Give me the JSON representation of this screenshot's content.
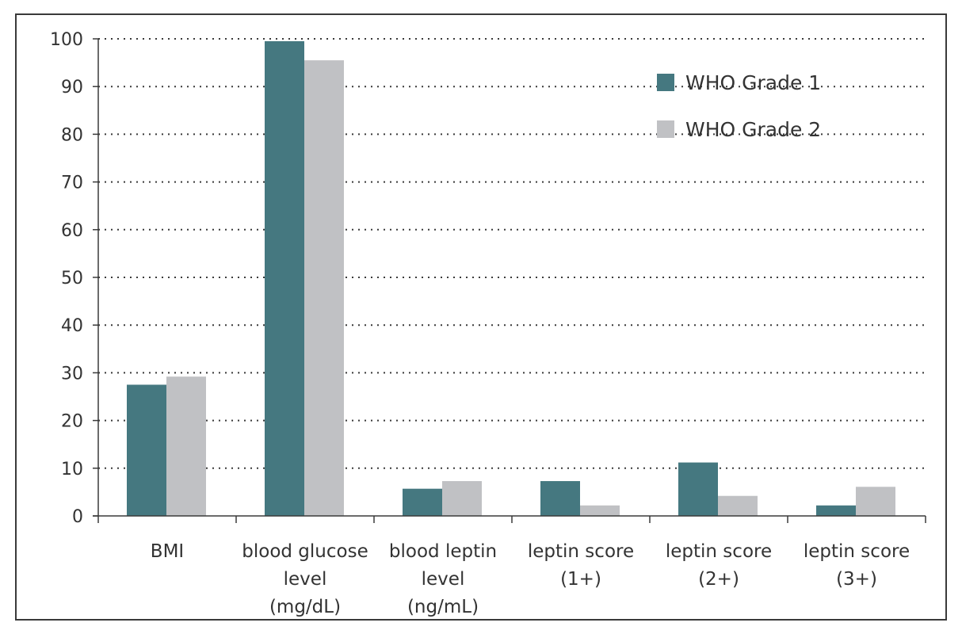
{
  "chart_data": {
    "type": "bar",
    "categories": [
      [
        "BMI"
      ],
      [
        "blood glucose",
        "level",
        "(mg/dL)"
      ],
      [
        "blood leptin",
        "level",
        "(ng/mL)"
      ],
      [
        "leptin score",
        "(1+)"
      ],
      [
        "leptin score",
        "(2+)"
      ],
      [
        "leptin score",
        "(3+)"
      ]
    ],
    "series": [
      {
        "name": "WHO Grade 1",
        "color": "#457880",
        "values": [
          27.5,
          99.5,
          5.7,
          7.3,
          11.2,
          2.2
        ]
      },
      {
        "name": "WHO Grade 2",
        "color": "#c0c1c4",
        "values": [
          29.2,
          95.5,
          7.3,
          2.2,
          4.2,
          6.1
        ]
      }
    ],
    "ylim": [
      0,
      100
    ],
    "yticks": [
      "0",
      "10",
      "20",
      "30",
      "40",
      "50",
      "60",
      "70",
      "80",
      "90",
      "100"
    ],
    "grid": true,
    "grid_style": "dotted",
    "legend_position": "top-right",
    "title": "",
    "xlabel": "",
    "ylabel": ""
  }
}
